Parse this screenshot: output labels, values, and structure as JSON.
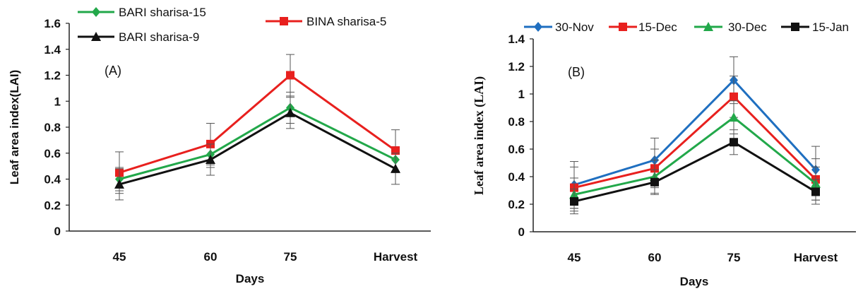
{
  "chart_data": [
    {
      "type": "line",
      "panel_label": "(A)",
      "xlabel": "Days",
      "ylabel": "Leaf area index(LAI)",
      "categories": [
        "45",
        "60",
        "75",
        "Harvest"
      ],
      "ylim": [
        0,
        1.6
      ],
      "yticks": [
        "0",
        "0.2",
        "0.4",
        "0.6",
        "0.8",
        "1",
        "1.2",
        "1.4",
        "1.6"
      ],
      "legend_position": "top",
      "series": [
        {
          "name": "BARI sharisa-15",
          "color": "#22a84a",
          "marker": "diamond",
          "values": [
            0.4,
            0.59,
            0.95,
            0.55
          ],
          "errors": [
            0.09,
            0.1,
            0.12,
            0.1
          ]
        },
        {
          "name": "BINA sharisa-5",
          "color": "#e8201e",
          "marker": "square",
          "values": [
            0.45,
            0.67,
            1.2,
            0.62
          ],
          "errors": [
            0.16,
            0.16,
            0.16,
            0.16
          ]
        },
        {
          "name": "BARI sharisa-9",
          "color": "#111111",
          "marker": "triangle",
          "values": [
            0.36,
            0.55,
            0.91,
            0.48
          ],
          "errors": [
            0.12,
            0.12,
            0.12,
            0.12
          ]
        }
      ]
    },
    {
      "type": "line",
      "panel_label": "(B)",
      "xlabel": "Days",
      "ylabel": "Leaf area index (LAI)",
      "categories": [
        "45",
        "60",
        "75",
        "Harvest"
      ],
      "ylim": [
        0,
        1.4
      ],
      "yticks": [
        "0",
        "0.2",
        "0.4",
        "0.6",
        "0.8",
        "1",
        "1.2",
        "1.4"
      ],
      "legend_position": "top",
      "series": [
        {
          "name": "30-Nov",
          "color": "#1f6fc0",
          "marker": "diamond",
          "values": [
            0.34,
            0.52,
            1.1,
            0.45
          ],
          "errors": [
            0.17,
            0.16,
            0.17,
            0.17
          ]
        },
        {
          "name": "15-Dec",
          "color": "#e8201e",
          "marker": "square",
          "values": [
            0.32,
            0.46,
            0.98,
            0.38
          ],
          "errors": [
            0.15,
            0.14,
            0.15,
            0.15
          ]
        },
        {
          "name": "30-Dec",
          "color": "#22a84a",
          "marker": "triangle",
          "values": [
            0.27,
            0.4,
            0.83,
            0.35
          ],
          "errors": [
            0.12,
            0.12,
            0.12,
            0.12
          ]
        },
        {
          "name": "15-Jan",
          "color": "#111111",
          "marker": "square",
          "values": [
            0.22,
            0.36,
            0.65,
            0.29
          ],
          "errors": [
            0.09,
            0.09,
            0.09,
            0.09
          ]
        }
      ]
    }
  ]
}
